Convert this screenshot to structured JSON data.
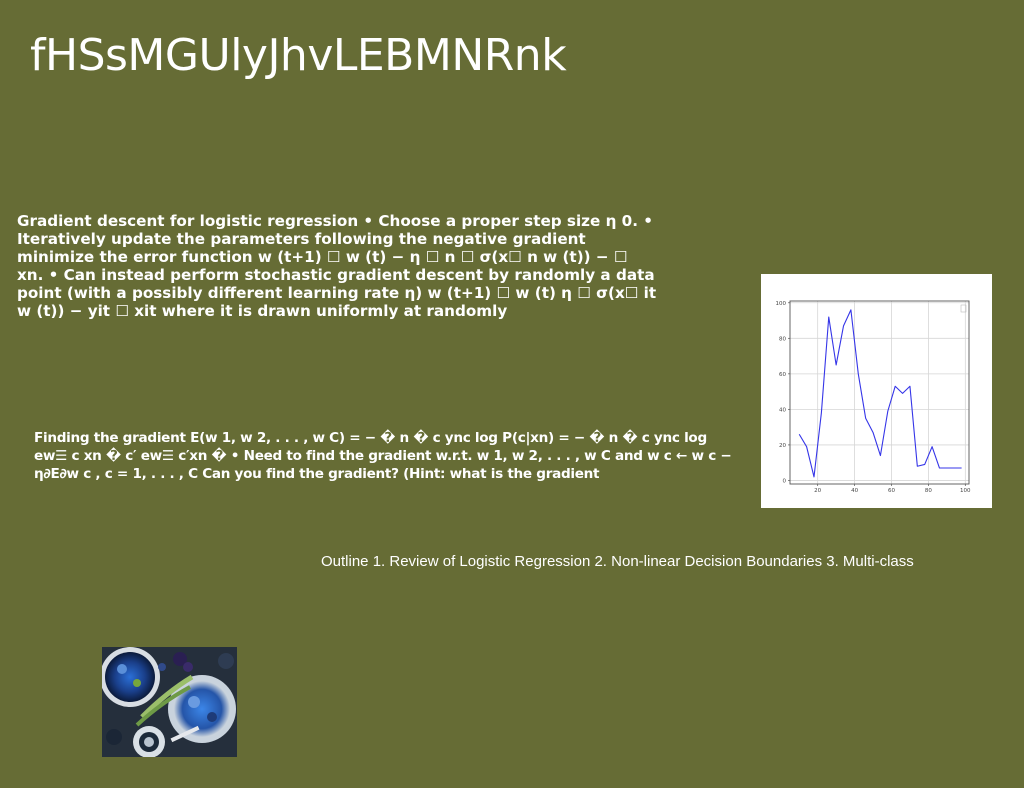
{
  "slide": {
    "title": "fHSsMGUlyJhvLEBMNRnk",
    "para1": "Gradient descent for logistic regression • Choose a proper step size η 0. • Iteratively update the parameters following the negative gradient minimize the error function w (t+1) ☐ w (t) − η ☐ n ☐ σ(x☐ n w (t)) − ☐ xn. • Can instead perform stochastic gradient descent by randomly a data point (with a possibly different learning rate η) w (t+1) ☐ w (t) η ☐ σ(x☐ it w (t)) − yit ☐ xit where it is drawn uniformly at randomly",
    "para2": "Finding the gradient E(w 1, w 2, . . . , w C) = − � n � c ync log P(c|xn) = − � n � c ync log ew☰ c xn � c′ ew☰ c′xn � • Need to find the gradient w.r.t. w 1, w 2, . . . , w C and w c ← w c − η∂E∂w c , c = 1, . . . , C Can you find the gradient? (Hint: what is the gradient",
    "outline": "Outline 1. Review of Logistic Regression 2. Non-linear Decision Boundaries 3. Multi-class"
  },
  "chart_data": {
    "type": "line",
    "x": [
      10,
      14,
      18,
      22,
      26,
      30,
      34,
      38,
      42,
      46,
      50,
      54,
      58,
      62,
      66,
      70,
      74,
      78,
      82,
      86,
      90,
      94,
      98
    ],
    "series": [
      {
        "values": [
          26,
          19,
          2,
          38,
          92,
          65,
          87,
          96,
          60,
          35,
          27,
          14,
          39,
          53,
          49,
          53,
          8,
          9,
          19,
          7,
          7,
          7,
          7
        ]
      }
    ],
    "x_ticks": [
      20,
      40,
      60,
      80,
      100
    ],
    "y_ticks": [
      0,
      20,
      40,
      60,
      80,
      100
    ],
    "xlim": [
      5,
      102
    ],
    "ylim": [
      -2,
      101
    ],
    "grid": true,
    "color": "#3535e8"
  }
}
